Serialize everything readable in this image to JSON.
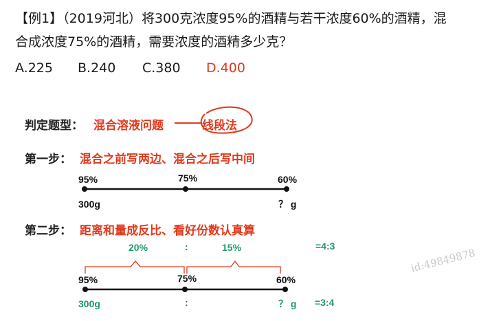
{
  "question": {
    "line1": "【例1】（2019河北）将300克浓度95%的酒精与若干浓度60%的酒精，混",
    "line2": "合成浓度75%的酒精，需要浓度的酒精多少克？"
  },
  "options": [
    {
      "label": "A.225",
      "correct": false
    },
    {
      "label": "B.240",
      "correct": false
    },
    {
      "label": "C.380",
      "correct": false
    },
    {
      "label": "D.400",
      "correct": true
    }
  ],
  "analysis": {
    "type_prefix": "判定题型：",
    "type_name": "混合溶液问题",
    "method": "线段法",
    "step1_prefix": "第一步：",
    "step1_text": "混合之前写两边、混合之后写中间",
    "step2_prefix": "第二步：",
    "step2_text": "距离和量成反比、看好份数认真算"
  },
  "line1": {
    "left": "95%",
    "mid": "75%",
    "right": "60%",
    "left_below": "300g",
    "right_below": "？ g"
  },
  "line2": {
    "left": "95%",
    "mid": "75%",
    "right": "60%",
    "dist_left": "20%",
    "dist_right": "15%",
    "colon_top": ":",
    "ratio_top": "=4:3",
    "left_below": "300g",
    "colon_bottom": ":",
    "right_below": "？ g",
    "ratio_bottom": "=3:4"
  },
  "watermark": "id:49849878",
  "colors": {
    "red": "#e03a1e",
    "green": "#1f9a6b",
    "blue": "#1f6fb0"
  }
}
